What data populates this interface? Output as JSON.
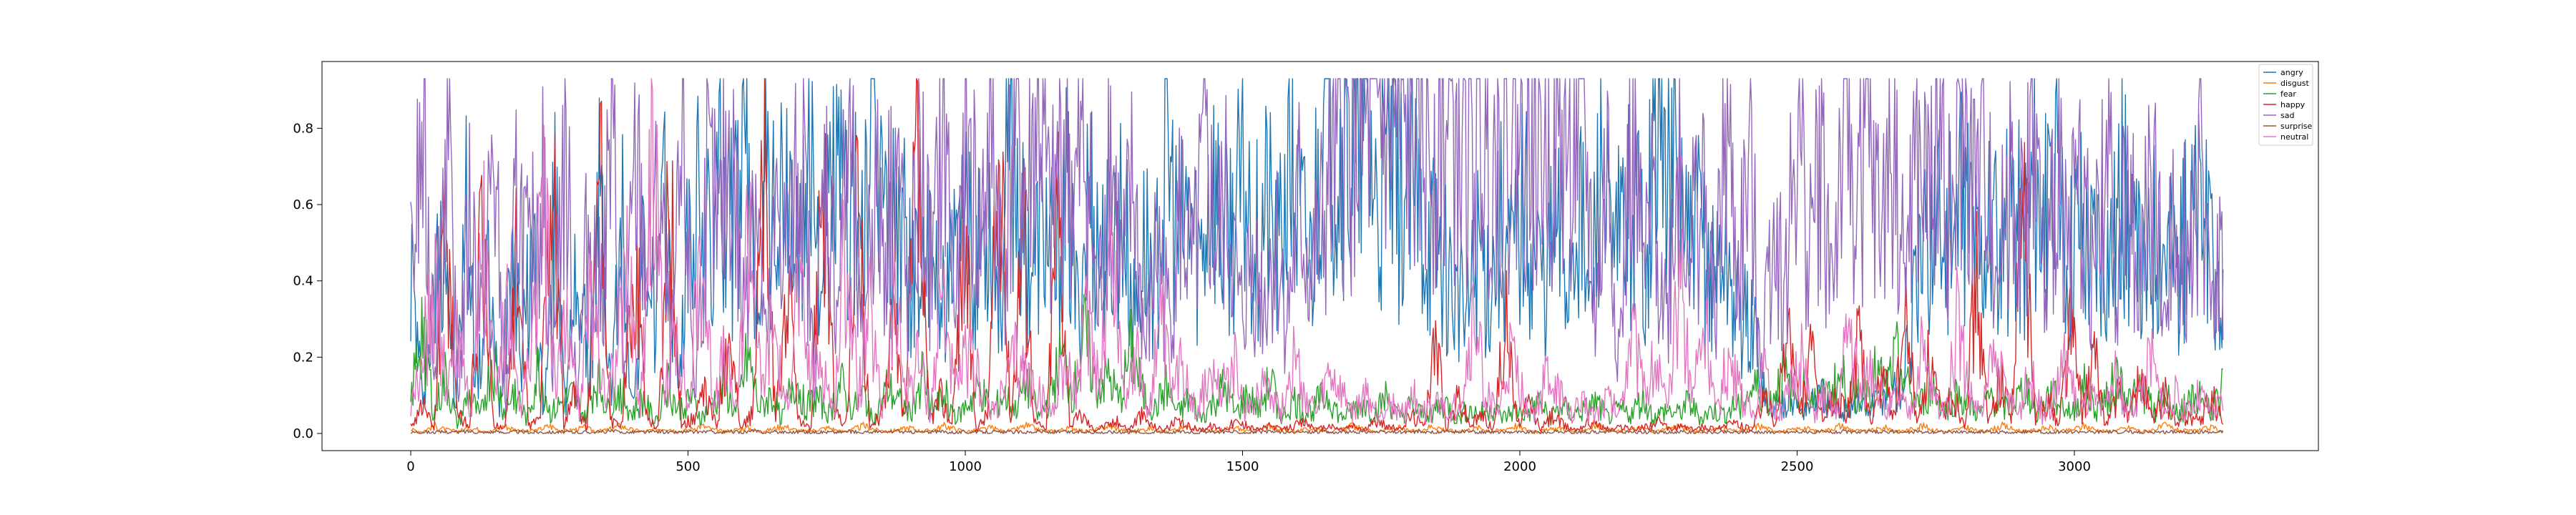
{
  "chart_data": {
    "type": "line",
    "title": "",
    "xlabel": "",
    "ylabel": "",
    "xlim": [
      -160,
      3440
    ],
    "ylim": [
      -0.045,
      0.975
    ],
    "xticks": [
      0,
      500,
      1000,
      1500,
      2000,
      2500,
      3000
    ],
    "xtick_labels": [
      "0",
      "500",
      "1000",
      "1500",
      "2000",
      "2500",
      "3000"
    ],
    "yticks": [
      0.0,
      0.2,
      0.4,
      0.6,
      0.8
    ],
    "ytick_labels": [
      "0.0",
      "0.2",
      "0.4",
      "0.6",
      "0.8"
    ],
    "grid": false,
    "legend_position": "top-right",
    "n_points": 3270,
    "x_range": [
      0,
      3269
    ],
    "series": [
      {
        "name": "angry",
        "color": "#1f77b4",
        "values": [
          0.45,
          0.1,
          0.3,
          0.62,
          0.05,
          0.58,
          0.12,
          0.4,
          0.06,
          0.55,
          0.2,
          0.5,
          0.04,
          0.6,
          0.08,
          0.45,
          0.15,
          0.62,
          0.1,
          0.55,
          0.05,
          0.48,
          0.3,
          0.6,
          0.12,
          0.5,
          0.6,
          0.45,
          0.7,
          0.5,
          0.72,
          0.4,
          0.65,
          0.55,
          0.6,
          0.45,
          0.75,
          0.42,
          0.7,
          0.6,
          0.55,
          0.6,
          0.72,
          0.5,
          0.6,
          0.4,
          0.45,
          0.4,
          0.38,
          0.42,
          0.55,
          0.45,
          0.6,
          0.35,
          0.82,
          0.5,
          0.45,
          0.55,
          0.4,
          0.6,
          0.3,
          0.65,
          0.45,
          0.5,
          0.6,
          0.3,
          0.5,
          0.4,
          0.75,
          0.48,
          0.58,
          0.45,
          0.7,
          0.5,
          0.55,
          0.65,
          0.5,
          0.6,
          0.45,
          0.7,
          0.55,
          0.45,
          0.9,
          0.8,
          0.75,
          0.7,
          0.85,
          0.55,
          0.72,
          0.6,
          0.65,
          0.55,
          0.5,
          0.45,
          0.35,
          0.3,
          0.5,
          0.4,
          0.55,
          0.45,
          0.6,
          0.5,
          0.4,
          0.55,
          0.4,
          0.65,
          0.3,
          0.75,
          0.4,
          0.55,
          0.62,
          0.5,
          0.88,
          0.6,
          0.7,
          0.45,
          0.55,
          0.4,
          0.5,
          0.35,
          0.3,
          0.25,
          0.05,
          0.08,
          0.1,
          0.06,
          0.08,
          0.1,
          0.05,
          0.07,
          0.08,
          0.06,
          0.09,
          0.12,
          0.1,
          0.3,
          0.45,
          0.6,
          0.5,
          0.55,
          0.62,
          0.45,
          0.58,
          0.4,
          0.65,
          0.5,
          0.7,
          0.55,
          0.62,
          0.45,
          0.6,
          0.48,
          0.55,
          0.5,
          0.65,
          0.45,
          0.4,
          0.58,
          0.5,
          0.45,
          0.55,
          0.6,
          0.4,
          0.35
        ]
      },
      {
        "name": "disgust",
        "color": "#ff7f0e",
        "values": [
          0.01,
          0.005,
          0.02,
          0.01,
          0.005,
          0.015,
          0.01,
          0.005,
          0.02,
          0.01,
          0.005,
          0.01,
          0.02,
          0.005,
          0.01,
          0.015,
          0.005,
          0.01,
          0.02,
          0.01,
          0.005,
          0.01,
          0.015,
          0.005,
          0.01,
          0.02,
          0.01,
          0.005,
          0.01,
          0.015,
          0.005,
          0.01,
          0.02,
          0.01,
          0.005,
          0.01,
          0.015,
          0.005,
          0.01,
          0.02,
          0.01,
          0.005,
          0.01,
          0.015,
          0.005,
          0.01,
          0.02,
          0.01,
          0.005,
          0.01,
          0.015,
          0.005,
          0.01,
          0.02,
          0.01,
          0.005,
          0.01,
          0.015,
          0.005,
          0.01,
          0.02,
          0.01,
          0.005,
          0.01,
          0.015,
          0.005,
          0.01,
          0.02,
          0.01,
          0.005,
          0.01,
          0.015,
          0.005,
          0.01,
          0.02,
          0.01,
          0.005,
          0.01,
          0.015,
          0.005,
          0.01,
          0.02,
          0.01,
          0.005,
          0.01,
          0.015,
          0.005,
          0.01,
          0.02,
          0.01,
          0.005,
          0.01,
          0.015,
          0.005,
          0.01,
          0.02,
          0.01,
          0.005,
          0.01,
          0.015,
          0.005,
          0.01,
          0.02,
          0.01,
          0.005,
          0.01,
          0.015,
          0.005,
          0.01,
          0.02,
          0.01,
          0.005,
          0.01,
          0.015,
          0.005,
          0.01,
          0.02,
          0.01,
          0.005,
          0.01,
          0.015,
          0.005,
          0.01,
          0.02,
          0.01,
          0.005,
          0.01,
          0.015,
          0.005,
          0.01,
          0.02,
          0.01,
          0.005,
          0.01,
          0.015,
          0.005,
          0.01,
          0.02,
          0.01,
          0.005,
          0.01,
          0.015,
          0.005,
          0.01,
          0.02,
          0.01,
          0.005,
          0.01,
          0.015,
          0.005,
          0.01,
          0.02,
          0.01,
          0.005,
          0.01,
          0.015,
          0.005
        ]
      },
      {
        "name": "fear",
        "color": "#2ca02c",
        "values": [
          0.08,
          0.3,
          0.05,
          0.15,
          0.02,
          0.1,
          0.04,
          0.2,
          0.06,
          0.12,
          0.03,
          0.18,
          0.05,
          0.08,
          0.1,
          0.04,
          0.15,
          0.06,
          0.12,
          0.05,
          0.09,
          0.03,
          0.14,
          0.06,
          0.1,
          0.04,
          0.08,
          0.12,
          0.05,
          0.2,
          0.06,
          0.1,
          0.04,
          0.15,
          0.07,
          0.09,
          0.05,
          0.13,
          0.06,
          0.1,
          0.04,
          0.12,
          0.08,
          0.05,
          0.16,
          0.06,
          0.1,
          0.04,
          0.08,
          0.12,
          0.05,
          0.1,
          0.06,
          0.14,
          0.04,
          0.09,
          0.2,
          0.1,
          0.25,
          0.12,
          0.15,
          0.08,
          0.22,
          0.1,
          0.06,
          0.12,
          0.05,
          0.09,
          0.04,
          0.08,
          0.12,
          0.05,
          0.1,
          0.06,
          0.14,
          0.04,
          0.09,
          0.05,
          0.08,
          0.1,
          0.04,
          0.06,
          0.08,
          0.05,
          0.1,
          0.04,
          0.07,
          0.05,
          0.06,
          0.08,
          0.04,
          0.06,
          0.05,
          0.07,
          0.04,
          0.06,
          0.05,
          0.08,
          0.04,
          0.07,
          0.05,
          0.06,
          0.08,
          0.04,
          0.06,
          0.05,
          0.09,
          0.04,
          0.06,
          0.05,
          0.08,
          0.04,
          0.06,
          0.05,
          0.07,
          0.1,
          0.12,
          0.08,
          0.15,
          0.1,
          0.12,
          0.08,
          0.1,
          0.14,
          0.12,
          0.1,
          0.15,
          0.12,
          0.2,
          0.1,
          0.08,
          0.12,
          0.06,
          0.1,
          0.08,
          0.05,
          0.1,
          0.06,
          0.08,
          0.12,
          0.06,
          0.1,
          0.08,
          0.05,
          0.12,
          0.06,
          0.1,
          0.15,
          0.08,
          0.12,
          0.06,
          0.1,
          0.05,
          0.08,
          0.1,
          0.06,
          0.12
        ]
      },
      {
        "name": "happy",
        "color": "#d62728",
        "values": [
          0.02,
          0.08,
          0.01,
          0.6,
          0.05,
          0.02,
          0.5,
          0.03,
          0.01,
          0.45,
          0.02,
          0.04,
          0.78,
          0.02,
          0.1,
          0.01,
          0.7,
          0.03,
          0.02,
          0.5,
          0.05,
          0.01,
          0.6,
          0.02,
          0.04,
          0.1,
          0.02,
          0.3,
          0.01,
          0.05,
          0.7,
          0.02,
          0.4,
          0.03,
          0.01,
          0.8,
          0.05,
          0.02,
          0.6,
          0.01,
          0.05,
          0.3,
          0.02,
          0.75,
          0.03,
          0.1,
          0.02,
          0.55,
          0.01,
          0.05,
          0.7,
          0.02,
          0.6,
          0.03,
          0.01,
          0.65,
          0.02,
          0.05,
          0.01,
          0.02,
          0.03,
          0.01,
          0.05,
          0.02,
          0.01,
          0.03,
          0.02,
          0.01,
          0.02,
          0.01,
          0.03,
          0.02,
          0.01,
          0.02,
          0.01,
          0.02,
          0.03,
          0.01,
          0.02,
          0.01,
          0.02,
          0.01,
          0.03,
          0.02,
          0.01,
          0.05,
          0.02,
          0.25,
          0.01,
          0.1,
          0.02,
          0.05,
          0.01,
          0.3,
          0.02,
          0.08,
          0.01,
          0.05,
          0.02,
          0.01,
          0.03,
          0.02,
          0.01,
          0.02,
          0.01,
          0.02,
          0.03,
          0.01,
          0.02,
          0.01,
          0.02,
          0.01,
          0.03,
          0.02,
          0.01,
          0.1,
          0.02,
          0.3,
          0.05,
          0.2,
          0.02,
          0.1,
          0.05,
          0.25,
          0.02,
          0.15,
          0.05,
          0.3,
          0.02,
          0.2,
          0.05,
          0.1,
          0.03,
          0.4,
          0.02,
          0.15,
          0.05,
          0.62,
          0.03,
          0.1,
          0.02,
          0.3,
          0.05,
          0.2,
          0.02,
          0.1,
          0.05,
          0.15,
          0.03,
          0.1,
          0.02,
          0.05,
          0.03,
          0.1,
          0.02
        ]
      },
      {
        "name": "sad",
        "color": "#9467bd",
        "values": [
          0.4,
          0.75,
          0.2,
          0.82,
          0.1,
          0.6,
          0.3,
          0.75,
          0.05,
          0.65,
          0.4,
          0.7,
          0.2,
          0.8,
          0.1,
          0.55,
          0.35,
          0.78,
          0.15,
          0.7,
          0.4,
          0.6,
          0.2,
          0.75,
          0.1,
          0.65,
          0.5,
          0.8,
          0.3,
          0.72,
          0.2,
          0.6,
          0.45,
          0.78,
          0.15,
          0.7,
          0.35,
          0.8,
          0.2,
          0.65,
          0.5,
          0.75,
          0.3,
          0.7,
          0.4,
          0.85,
          0.3,
          0.78,
          0.5,
          0.8,
          0.4,
          0.85,
          0.6,
          0.9,
          0.5,
          0.8,
          0.6,
          0.75,
          0.3,
          0.8,
          0.4,
          0.65,
          0.2,
          0.5,
          0.3,
          0.6,
          0.4,
          0.7,
          0.5,
          0.6,
          0.3,
          0.45,
          0.35,
          0.5,
          0.3,
          0.6,
          0.4,
          0.55,
          0.7,
          0.75,
          0.8,
          0.78,
          0.82,
          0.8,
          0.76,
          0.8,
          0.78,
          0.82,
          0.8,
          0.75,
          0.8,
          0.78,
          0.76,
          0.82,
          0.8,
          0.78,
          0.8,
          0.75,
          0.78,
          0.8,
          0.3,
          0.7,
          0.2,
          0.8,
          0.4,
          0.6,
          0.3,
          0.75,
          0.5,
          0.65,
          0.3,
          0.8,
          0.4,
          0.7,
          0.2,
          0.6,
          0.35,
          0.82,
          0.5,
          0.7,
          0.4,
          0.85,
          0.6,
          0.78,
          0.5,
          0.8,
          0.4,
          0.7,
          0.6,
          0.9,
          0.5,
          0.8,
          0.6,
          0.75,
          0.4,
          0.7,
          0.5,
          0.8,
          0.3,
          0.75,
          0.5,
          0.65,
          0.4,
          0.7,
          0.5,
          0.6,
          0.4,
          0.72,
          0.3,
          0.6,
          0.5,
          0.68,
          0.4,
          0.45
        ]
      },
      {
        "name": "surprise",
        "color": "#8c564b",
        "values": [
          0.003,
          0.005,
          0.002,
          0.004,
          0.003,
          0.006,
          0.002,
          0.004,
          0.003,
          0.005,
          0.002,
          0.004,
          0.003,
          0.005,
          0.002,
          0.004,
          0.003,
          0.006,
          0.002,
          0.004,
          0.003,
          0.005,
          0.002,
          0.004,
          0.003,
          0.005,
          0.002,
          0.004,
          0.003,
          0.006,
          0.002,
          0.004,
          0.003,
          0.005,
          0.002,
          0.004,
          0.003,
          0.005,
          0.002,
          0.004,
          0.003,
          0.006,
          0.002,
          0.004,
          0.003,
          0.005,
          0.002,
          0.004,
          0.003,
          0.005,
          0.002,
          0.004,
          0.003,
          0.006,
          0.002,
          0.004,
          0.003,
          0.005,
          0.002,
          0.004,
          0.003,
          0.005,
          0.002,
          0.004,
          0.003,
          0.006,
          0.002,
          0.004,
          0.003,
          0.005,
          0.002,
          0.004,
          0.003,
          0.005,
          0.002,
          0.004,
          0.003,
          0.006,
          0.002,
          0.004,
          0.003,
          0.005,
          0.002,
          0.004,
          0.003,
          0.005,
          0.002,
          0.004,
          0.003,
          0.006,
          0.002,
          0.004,
          0.003,
          0.005,
          0.002,
          0.004,
          0.003,
          0.005,
          0.002,
          0.004,
          0.003,
          0.006,
          0.002,
          0.004,
          0.003,
          0.005,
          0.002,
          0.004,
          0.003,
          0.005,
          0.002,
          0.004,
          0.003,
          0.006,
          0.002,
          0.004,
          0.003,
          0.005,
          0.002,
          0.004,
          0.003,
          0.005,
          0.002,
          0.004,
          0.003,
          0.006,
          0.002,
          0.004,
          0.003,
          0.005,
          0.002,
          0.004,
          0.003,
          0.005,
          0.002,
          0.004,
          0.003,
          0.006,
          0.002,
          0.004,
          0.003,
          0.005,
          0.002,
          0.004,
          0.003,
          0.005,
          0.002,
          0.004,
          0.003,
          0.006,
          0.002,
          0.004,
          0.003,
          0.005
        ]
      },
      {
        "name": "neutral",
        "color": "#e377c2",
        "values": [
          0.05,
          0.2,
          0.4,
          0.1,
          0.3,
          0.05,
          0.5,
          0.1,
          0.3,
          0.05,
          0.2,
          0.6,
          0.1,
          0.3,
          0.05,
          0.4,
          0.1,
          0.2,
          0.45,
          0.05,
          0.85,
          0.1,
          0.3,
          0.05,
          0.5,
          0.1,
          0.2,
          0.05,
          0.6,
          0.1,
          0.3,
          0.05,
          0.4,
          0.15,
          0.2,
          0.05,
          0.5,
          0.1,
          0.3,
          0.05,
          0.35,
          0.1,
          0.2,
          0.05,
          0.4,
          0.1,
          0.2,
          0.15,
          0.05,
          0.1,
          0.2,
          0.15,
          0.1,
          0.05,
          0.2,
          0.1,
          0.3,
          0.15,
          0.5,
          0.1,
          0.2,
          0.05,
          0.3,
          0.1,
          0.2,
          0.05,
          0.15,
          0.1,
          0.2,
          0.05,
          0.1,
          0.15,
          0.05,
          0.2,
          0.1,
          0.05,
          0.15,
          0.1,
          0.05,
          0.1,
          0.05,
          0.08,
          0.05,
          0.1,
          0.05,
          0.08,
          0.05,
          0.1,
          0.3,
          0.1,
          0.05,
          0.2,
          0.1,
          0.05,
          0.15,
          0.1,
          0.05,
          0.08,
          0.05,
          0.1,
          0.05,
          0.3,
          0.1,
          0.2,
          0.05,
          0.4,
          0.1,
          0.3,
          0.05,
          0.2,
          0.1,
          0.05,
          0.15,
          0.05,
          0.1,
          0.2,
          0.05,
          0.1,
          0.05,
          0.3,
          0.1,
          0.2,
          0.05,
          0.1,
          0.05,
          0.2,
          0.1,
          0.05,
          0.3,
          0.1,
          0.05,
          0.2,
          0.1,
          0.05,
          0.15,
          0.05,
          0.1,
          0.2,
          0.05,
          0.1,
          0.05,
          0.15,
          0.05,
          0.1,
          0.2,
          0.05,
          0.1,
          0.05,
          0.1,
          0.05,
          0.08
        ]
      }
    ]
  }
}
